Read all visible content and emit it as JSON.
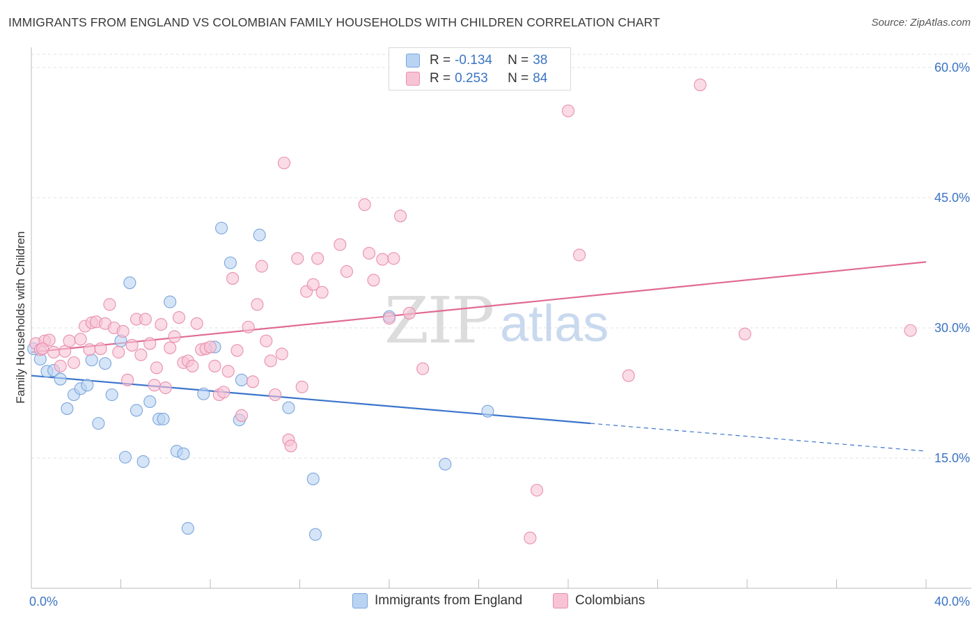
{
  "title": "IMMIGRANTS FROM ENGLAND VS COLOMBIAN FAMILY HOUSEHOLDS WITH CHILDREN CORRELATION CHART",
  "source": "Source: ZipAtlas.com",
  "watermark": {
    "zip": "ZIP",
    "atlas": "atlas"
  },
  "colors": {
    "blue_fill": "#b9d3f2",
    "blue_stroke": "#7aa5dc",
    "blue_line": "#3b74cc",
    "pink_fill": "#f7c3d5",
    "pink_stroke": "#e88fae",
    "pink_line": "#e06b93",
    "axis_label": "#3b74c4",
    "grid": "#e2e2e2"
  },
  "legend": {
    "series1": {
      "r_label": "R =",
      "r_value": "-0.134",
      "n_label": "N =",
      "n_value": "38"
    },
    "series2": {
      "r_label": "R =",
      "r_value": "0.253",
      "n_label": "N =",
      "n_value": "84"
    }
  },
  "bottom_legend": {
    "series1": "Immigrants from England",
    "series2": "Colombians"
  },
  "chart_data": {
    "type": "scatter",
    "title": "IMMIGRANTS FROM ENGLAND VS COLOMBIAN FAMILY HOUSEHOLDS WITH CHILDREN CORRELATION CHART",
    "xlabel": "",
    "ylabel": "Family Households with Children",
    "xlim": [
      0,
      40
    ],
    "ylim": [
      0,
      60
    ],
    "x_tick_labels": [
      "0.0%",
      "40.0%"
    ],
    "y_ticks": [
      15,
      30,
      45,
      60
    ],
    "y_tick_labels": [
      "15.0%",
      "30.0%",
      "45.0%",
      "60.0%"
    ],
    "grid": true,
    "series": [
      {
        "name": "Immigrants from England",
        "r": -0.134,
        "n": 38,
        "trend": {
          "x0": 0,
          "y0": 24.5,
          "x1": 25.0,
          "y1": 19.0,
          "dash_to_x": 40,
          "dash_to_y": 15.8
        },
        "points": [
          [
            0.1,
            27.6
          ],
          [
            0.4,
            26.4
          ],
          [
            0.7,
            25.0
          ],
          [
            1.0,
            25.1
          ],
          [
            1.3,
            24.1
          ],
          [
            1.6,
            20.7
          ],
          [
            1.9,
            22.3
          ],
          [
            2.2,
            23.0
          ],
          [
            2.5,
            23.4
          ],
          [
            2.7,
            26.3
          ],
          [
            3.0,
            19.0
          ],
          [
            3.3,
            25.9
          ],
          [
            3.6,
            22.3
          ],
          [
            4.0,
            28.5
          ],
          [
            4.2,
            15.1
          ],
          [
            4.4,
            35.2
          ],
          [
            4.7,
            20.5
          ],
          [
            5.0,
            14.6
          ],
          [
            5.3,
            21.5
          ],
          [
            5.7,
            19.5
          ],
          [
            5.9,
            19.5
          ],
          [
            6.2,
            33.0
          ],
          [
            6.5,
            15.8
          ],
          [
            6.8,
            15.5
          ],
          [
            7.0,
            6.9
          ],
          [
            7.7,
            22.4
          ],
          [
            8.2,
            27.8
          ],
          [
            8.5,
            41.5
          ],
          [
            8.9,
            37.5
          ],
          [
            9.3,
            19.4
          ],
          [
            9.4,
            24.0
          ],
          [
            10.2,
            40.7
          ],
          [
            11.5,
            20.8
          ],
          [
            12.6,
            12.6
          ],
          [
            12.7,
            6.2
          ],
          [
            16.0,
            31.3
          ],
          [
            18.5,
            14.3
          ],
          [
            20.4,
            20.4
          ]
        ]
      },
      {
        "name": "Colombians",
        "r": 0.253,
        "n": 84,
        "trend": {
          "x0": 0,
          "y0": 27.2,
          "x1": 40,
          "y1": 37.6
        },
        "points": [
          [
            0.2,
            28.2
          ],
          [
            0.4,
            27.5
          ],
          [
            0.6,
            28.5
          ],
          [
            0.8,
            28.6
          ],
          [
            1.0,
            27.2
          ],
          [
            1.3,
            25.6
          ],
          [
            1.5,
            27.3
          ],
          [
            1.7,
            28.5
          ],
          [
            1.9,
            26.0
          ],
          [
            2.2,
            28.7
          ],
          [
            2.4,
            30.2
          ],
          [
            2.6,
            27.5
          ],
          [
            2.7,
            30.6
          ],
          [
            2.9,
            30.7
          ],
          [
            3.1,
            27.6
          ],
          [
            3.3,
            30.5
          ],
          [
            3.5,
            32.7
          ],
          [
            3.7,
            30.0
          ],
          [
            3.9,
            27.2
          ],
          [
            4.1,
            29.6
          ],
          [
            4.3,
            24.0
          ],
          [
            4.5,
            28.0
          ],
          [
            4.7,
            31.0
          ],
          [
            4.9,
            26.9
          ],
          [
            5.1,
            31.0
          ],
          [
            5.3,
            28.2
          ],
          [
            5.5,
            23.4
          ],
          [
            5.6,
            25.4
          ],
          [
            5.8,
            30.4
          ],
          [
            6.0,
            23.1
          ],
          [
            6.2,
            27.7
          ],
          [
            6.4,
            29.0
          ],
          [
            6.6,
            31.2
          ],
          [
            6.8,
            26.0
          ],
          [
            7.0,
            26.2
          ],
          [
            7.2,
            25.6
          ],
          [
            7.4,
            30.5
          ],
          [
            7.6,
            27.5
          ],
          [
            7.8,
            27.6
          ],
          [
            8.0,
            27.8
          ],
          [
            8.2,
            25.6
          ],
          [
            8.4,
            22.3
          ],
          [
            8.6,
            22.6
          ],
          [
            8.8,
            25.0
          ],
          [
            9.0,
            35.7
          ],
          [
            9.2,
            27.4
          ],
          [
            9.4,
            19.9
          ],
          [
            9.7,
            30.1
          ],
          [
            9.9,
            23.8
          ],
          [
            10.1,
            32.7
          ],
          [
            10.3,
            37.1
          ],
          [
            10.5,
            28.5
          ],
          [
            10.7,
            26.2
          ],
          [
            10.9,
            22.3
          ],
          [
            11.2,
            27.0
          ],
          [
            11.3,
            49.0
          ],
          [
            11.5,
            17.1
          ],
          [
            11.6,
            16.4
          ],
          [
            11.9,
            38.0
          ],
          [
            12.1,
            23.2
          ],
          [
            12.3,
            34.2
          ],
          [
            12.6,
            35.0
          ],
          [
            12.8,
            38.0
          ],
          [
            13.0,
            34.1
          ],
          [
            13.8,
            39.6
          ],
          [
            14.1,
            36.5
          ],
          [
            14.9,
            44.2
          ],
          [
            15.1,
            38.6
          ],
          [
            15.3,
            35.5
          ],
          [
            15.7,
            37.9
          ],
          [
            16.0,
            31.1
          ],
          [
            16.2,
            38.0
          ],
          [
            16.5,
            42.9
          ],
          [
            16.9,
            31.7
          ],
          [
            17.5,
            25.3
          ],
          [
            22.3,
            5.8
          ],
          [
            22.6,
            11.3
          ],
          [
            24.0,
            55.0
          ],
          [
            24.5,
            38.4
          ],
          [
            26.7,
            24.5
          ],
          [
            29.9,
            58.0
          ],
          [
            31.9,
            29.3
          ],
          [
            39.3,
            29.7
          ],
          [
            0.5,
            27.6
          ]
        ]
      }
    ]
  }
}
